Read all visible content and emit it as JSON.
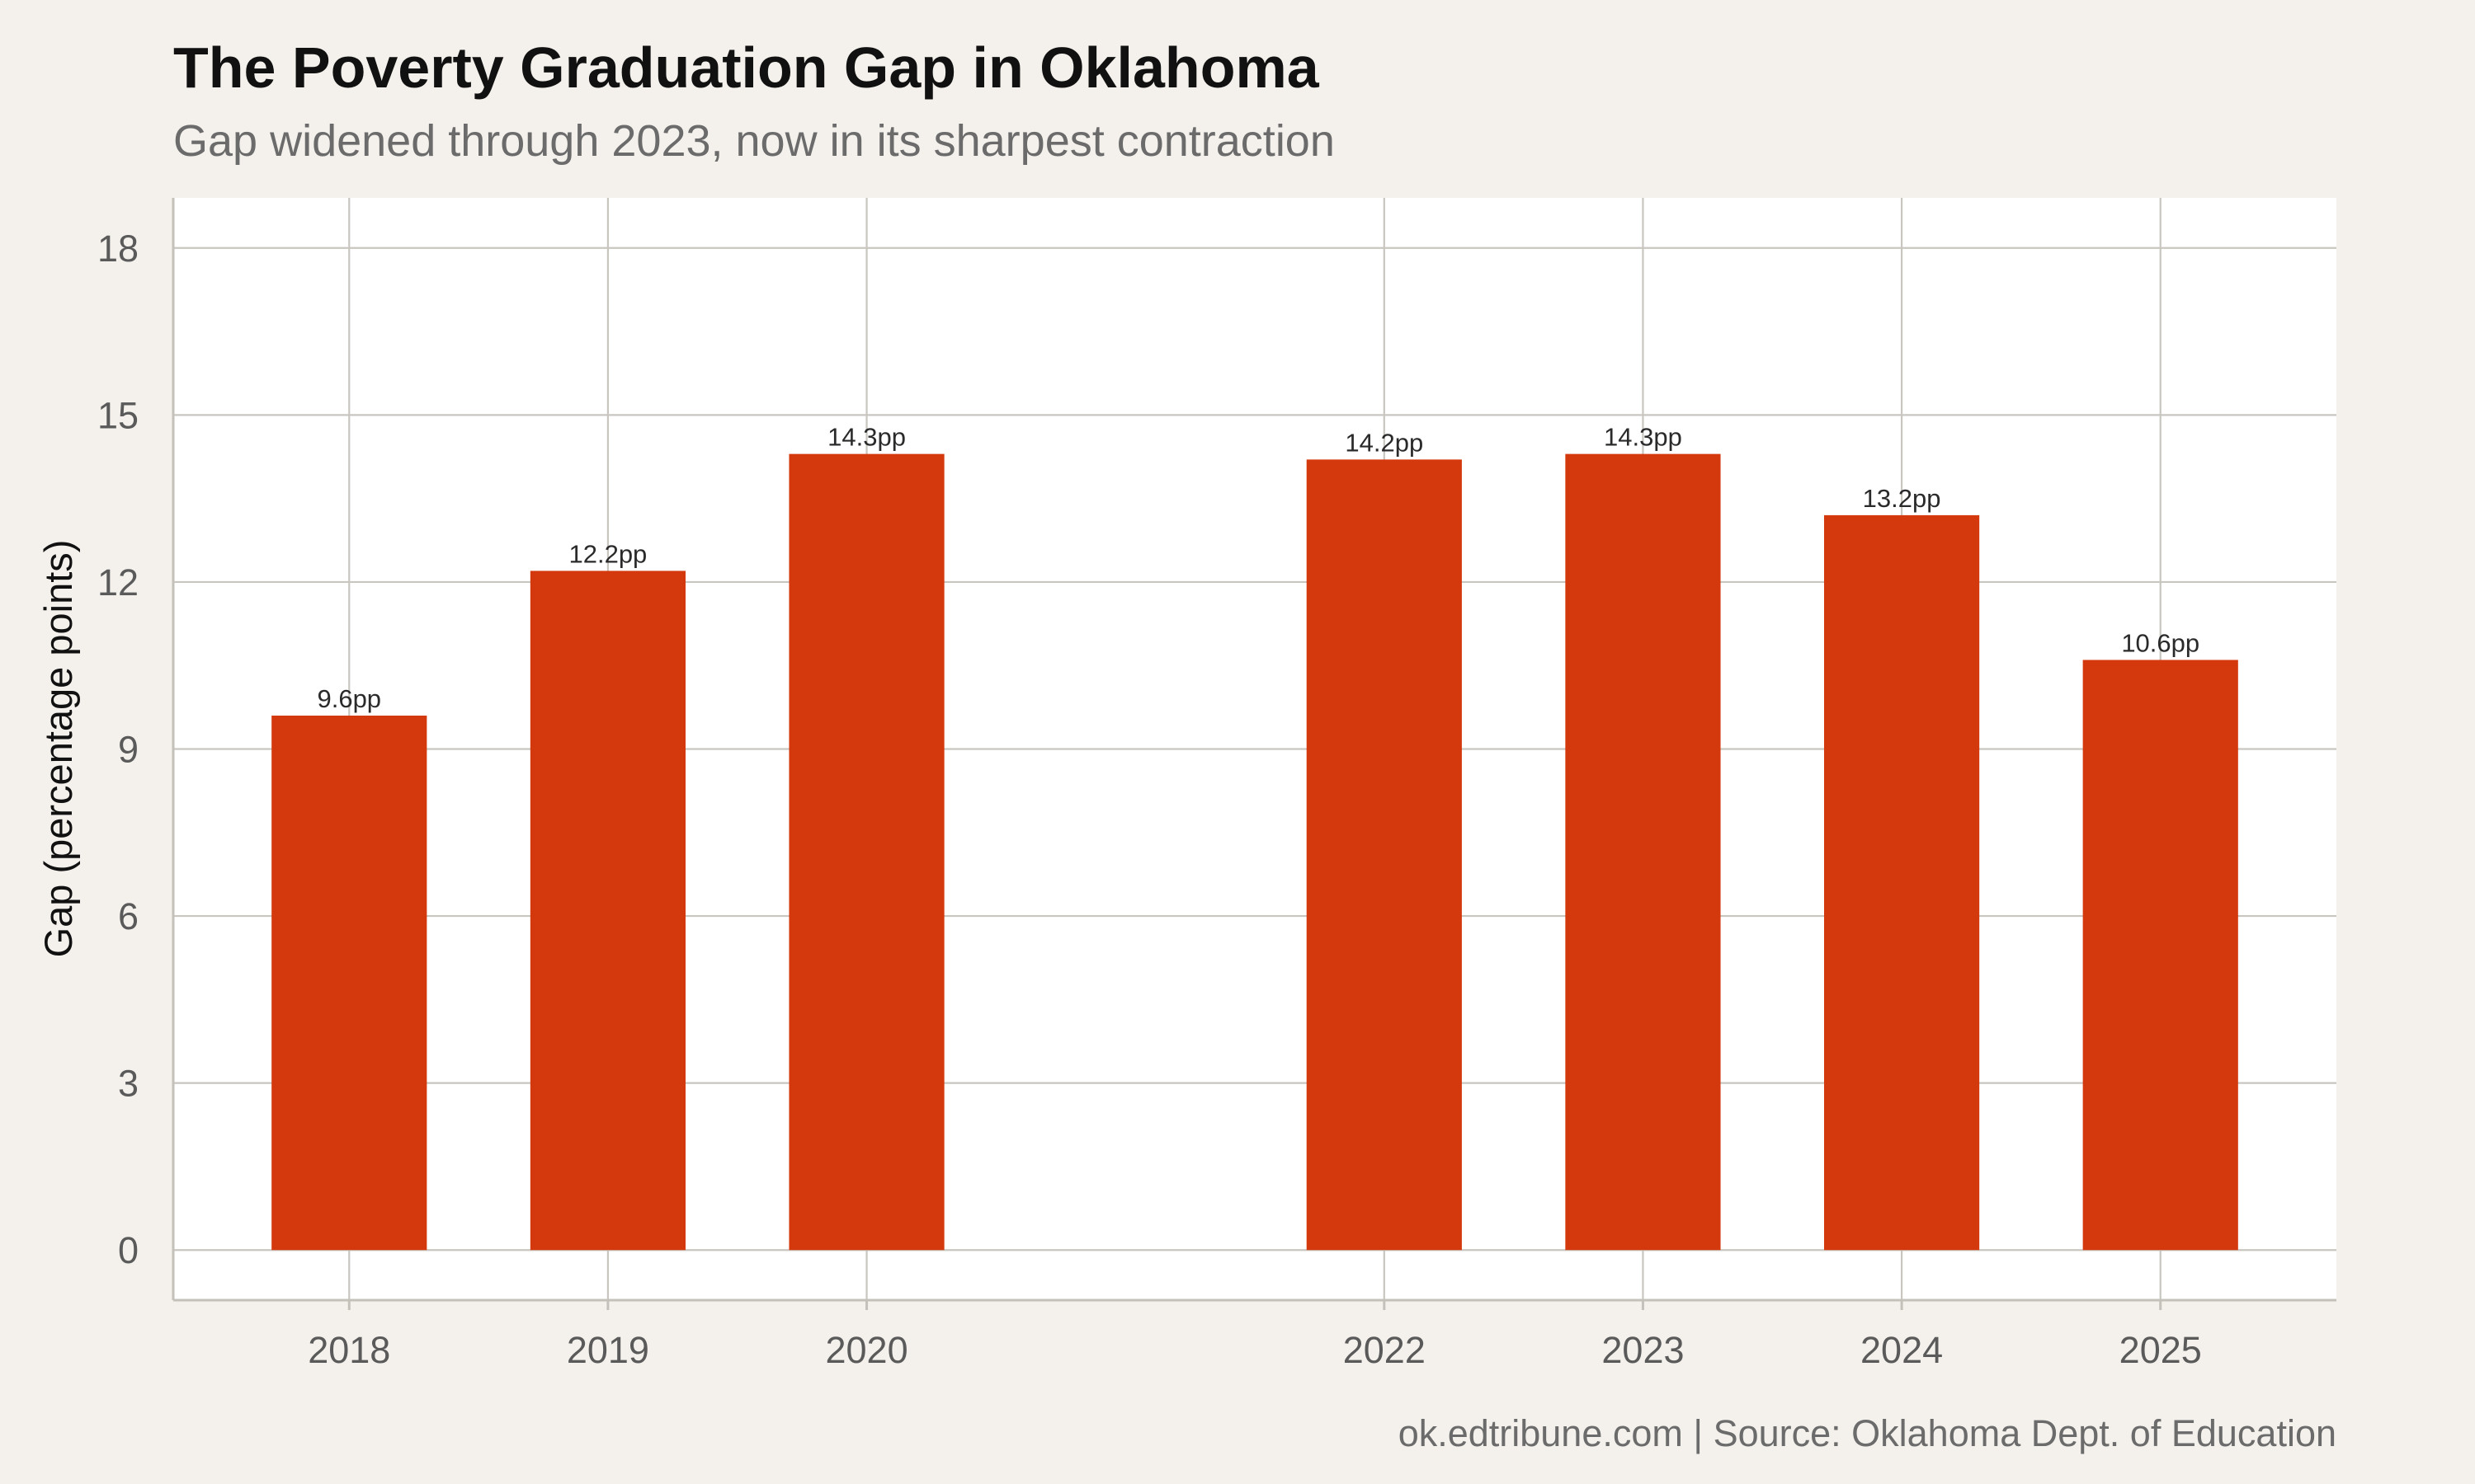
{
  "chart_data": {
    "type": "bar",
    "title": "The Poverty Graduation Gap in Oklahoma",
    "subtitle": "Gap widened through 2023, now in its sharpest contraction",
    "ylabel": "Gap (percentage points)",
    "xlabel": "",
    "x": [
      2018,
      2019,
      2020,
      2022,
      2023,
      2024,
      2025
    ],
    "categories": [
      "2018",
      "2019",
      "2020",
      "2022",
      "2023",
      "2024",
      "2025"
    ],
    "values": [
      9.6,
      12.2,
      14.3,
      14.2,
      14.3,
      13.2,
      10.6
    ],
    "data_labels": [
      "9.6pp",
      "12.2pp",
      "14.3pp",
      "14.2pp",
      "14.3pp",
      "13.2pp",
      "10.6pp"
    ],
    "xlim": [
      2017.32,
      2025.68
    ],
    "ylim": [
      -0.9,
      18.9
    ],
    "yticks": [
      0,
      3,
      6,
      9,
      12,
      15,
      18
    ],
    "grid": true,
    "bar_color": "#d4380d",
    "caption": "ok.edtribune.com | Source: Oklahoma Dept. of Education"
  }
}
